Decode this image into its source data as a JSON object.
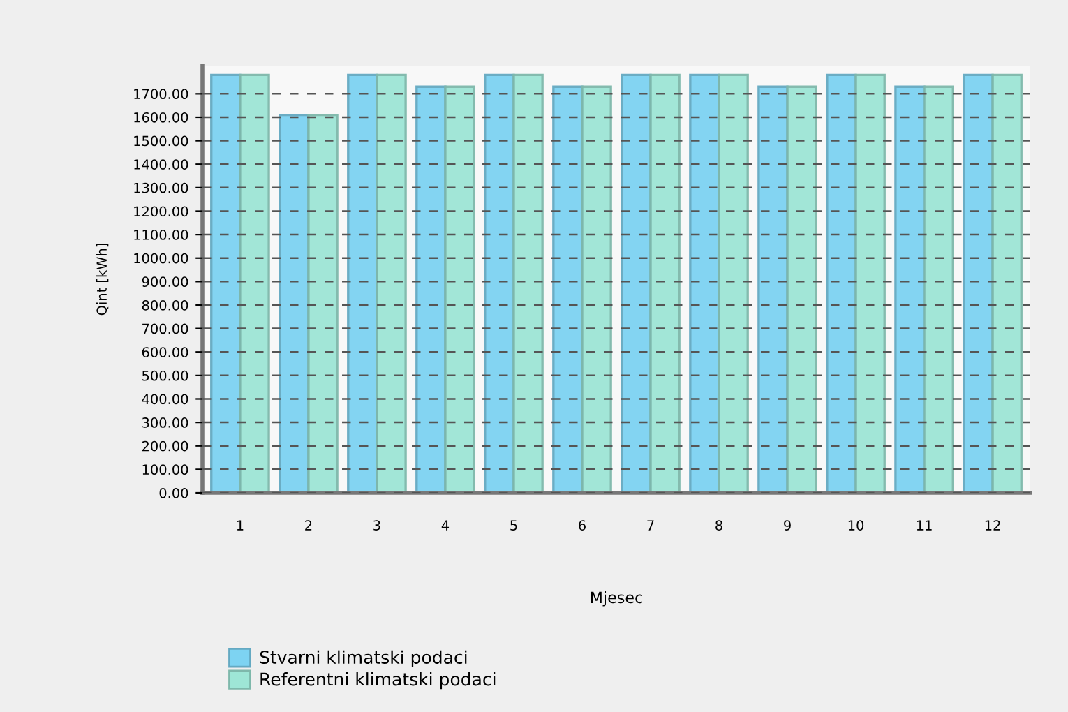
{
  "chart_data": {
    "type": "bar",
    "xlabel": "Mjesec",
    "ylabel": "Qint [kWh]",
    "categories": [
      "1",
      "2",
      "3",
      "4",
      "5",
      "6",
      "7",
      "8",
      "9",
      "10",
      "11",
      "12"
    ],
    "series": [
      {
        "name": "Stvarni klimatski podaci",
        "color": "#7dd3f2",
        "values": [
          1780,
          1610,
          1780,
          1730,
          1780,
          1730,
          1780,
          1780,
          1730,
          1780,
          1730,
          1780
        ]
      },
      {
        "name": "Referentni klimatski podaci",
        "color": "#9ee6d6",
        "values": [
          1780,
          1610,
          1780,
          1730,
          1780,
          1730,
          1780,
          1780,
          1730,
          1780,
          1730,
          1780
        ]
      }
    ],
    "ylim": [
      0,
      1820
    ],
    "yticks": [
      {
        "value": 0,
        "label": "0.00"
      },
      {
        "value": 100,
        "label": "100.00"
      },
      {
        "value": 200,
        "label": "200.00"
      },
      {
        "value": 300,
        "label": "300.00"
      },
      {
        "value": 400,
        "label": "400.00"
      },
      {
        "value": 500,
        "label": "500.00"
      },
      {
        "value": 600,
        "label": "600.00"
      },
      {
        "value": 700,
        "label": "700.00"
      },
      {
        "value": 800,
        "label": "800.00"
      },
      {
        "value": 900,
        "label": "900.00"
      },
      {
        "value": 1000,
        "label": "1000.00"
      },
      {
        "value": 1100,
        "label": "1100.00"
      },
      {
        "value": 1200,
        "label": "1200.00"
      },
      {
        "value": 1300,
        "label": "1300.00"
      },
      {
        "value": 1400,
        "label": "1400.00"
      },
      {
        "value": 1500,
        "label": "1500.00"
      },
      {
        "value": 1600,
        "label": "1600.00"
      },
      {
        "value": 1700,
        "label": "1700.00"
      }
    ],
    "grid": "y",
    "legend": "bottom left"
  }
}
